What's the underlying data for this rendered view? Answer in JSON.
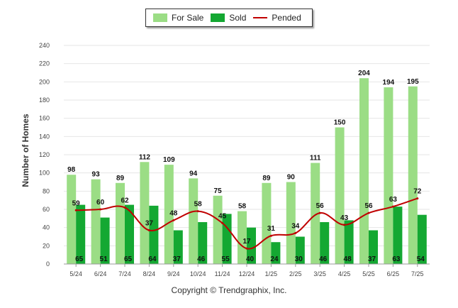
{
  "legend": {
    "for_sale": "For Sale",
    "sold": "Sold",
    "pended": "Pended"
  },
  "copyright": "Copyright © Trendgraphix, Inc.",
  "colors": {
    "for_sale": "#9bdd85",
    "sold": "#14a832",
    "pended": "#c00000",
    "grid": "#e6e6e6"
  },
  "chart_data": {
    "type": "bar",
    "title": "",
    "xlabel": "",
    "ylabel": "Number of Homes",
    "ylim": [
      0,
      240
    ],
    "yticks": [
      0,
      20,
      40,
      60,
      80,
      100,
      120,
      140,
      160,
      180,
      200,
      220,
      240
    ],
    "grid": true,
    "legend_position": "top-center",
    "categories": [
      "5/24",
      "6/24",
      "7/24",
      "8/24",
      "9/24",
      "10/24",
      "11/24",
      "12/24",
      "1/25",
      "2/25",
      "3/25",
      "4/25",
      "5/25",
      "6/25",
      "7/25"
    ],
    "series": [
      {
        "name": "For Sale",
        "kind": "bar",
        "values": [
          98,
          93,
          89,
          112,
          109,
          94,
          75,
          58,
          89,
          90,
          111,
          150,
          204,
          194,
          195
        ]
      },
      {
        "name": "Sold",
        "kind": "bar",
        "values": [
          65,
          51,
          65,
          64,
          37,
          46,
          55,
          40,
          24,
          30,
          46,
          48,
          37,
          63,
          54
        ]
      },
      {
        "name": "Pended",
        "kind": "line",
        "values": [
          59,
          60,
          62,
          37,
          48,
          58,
          45,
          17,
          31,
          34,
          56,
          43,
          56,
          63,
          72
        ]
      }
    ]
  }
}
